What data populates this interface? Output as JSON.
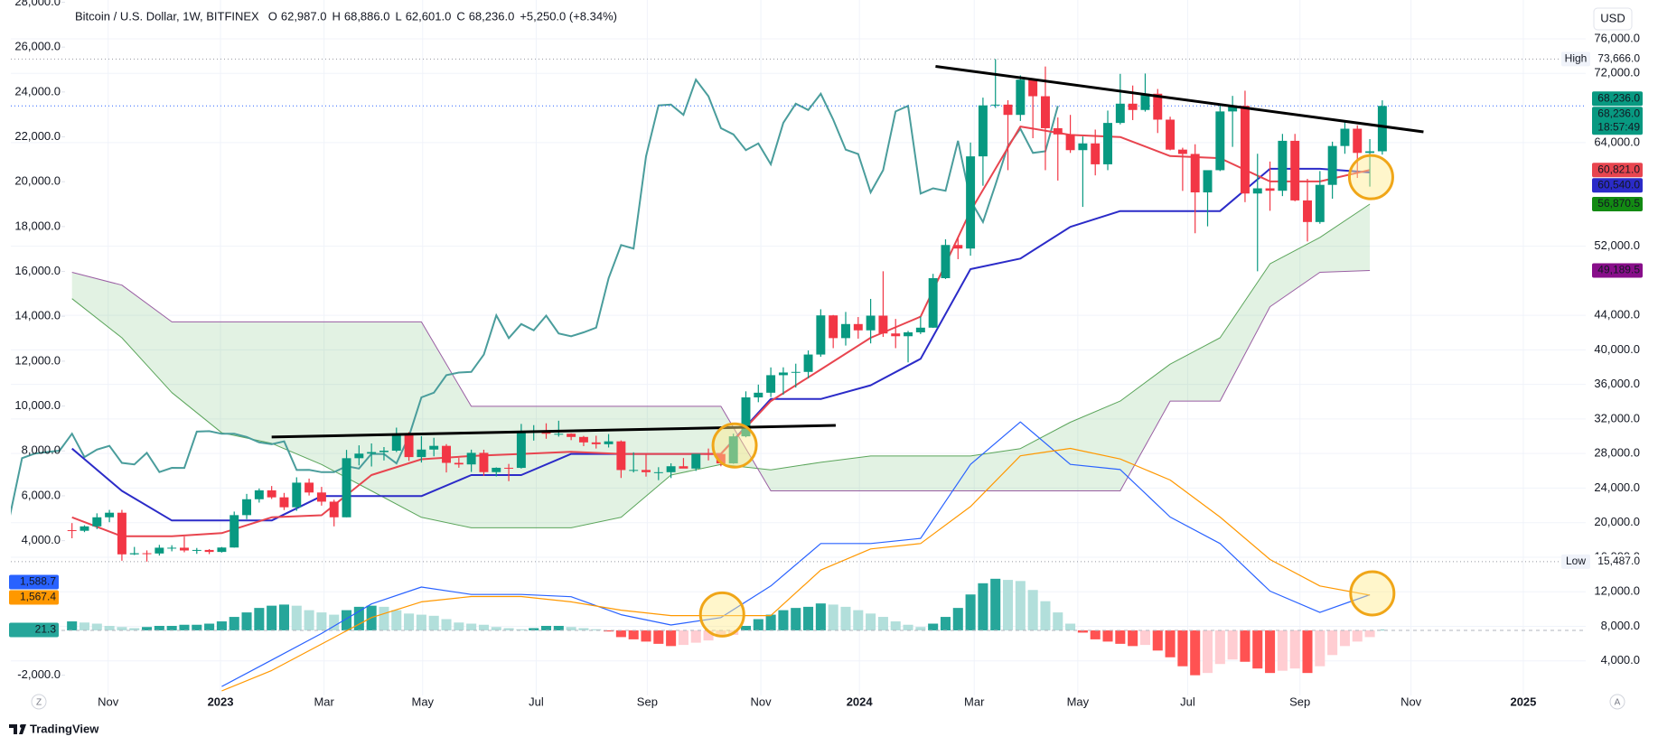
{
  "header": {
    "symbol": "Bitcoin / U.S. Dollar, 1W, BITFINEX",
    "ohlc": [
      {
        "key": "O",
        "value": "62,987.0"
      },
      {
        "key": "H",
        "value": "68,886.0"
      },
      {
        "key": "L",
        "value": "62,601.0"
      },
      {
        "key": "C",
        "value": "68,236.0"
      }
    ],
    "change": "+5,250.0 (+8.34%)",
    "currency": "USD"
  },
  "footer": {
    "brand": "TradingView",
    "left_button": "Z",
    "right_button": "A"
  },
  "chart_data": {
    "type": "candlestick",
    "up_color": "#089981",
    "down_color": "#f23645",
    "candles": [
      [
        19130,
        19950,
        18190,
        19060
      ],
      [
        19060,
        19700,
        18900,
        19570
      ],
      [
        19570,
        21080,
        19250,
        20620
      ],
      [
        20620,
        21480,
        20050,
        21150
      ],
      [
        21150,
        21480,
        15590,
        16330
      ],
      [
        16330,
        17190,
        16250,
        16460
      ],
      [
        16460,
        16790,
        15487,
        16430
      ],
      [
        16430,
        17430,
        16190,
        17100
      ],
      [
        17100,
        17390,
        16680,
        17100
      ],
      [
        17100,
        18390,
        16570,
        16780
      ],
      [
        16780,
        17070,
        16390,
        16840
      ],
      [
        16840,
        16940,
        16360,
        16610
      ],
      [
        16610,
        17180,
        16540,
        17120
      ],
      [
        17120,
        21280,
        17110,
        20870
      ],
      [
        20870,
        23330,
        20400,
        22710
      ],
      [
        22710,
        23960,
        22320,
        23740
      ],
      [
        23740,
        24240,
        22740,
        22930
      ],
      [
        22930,
        23440,
        21460,
        21780
      ],
      [
        21780,
        25250,
        21370,
        24630
      ],
      [
        24630,
        25100,
        23140,
        23490
      ],
      [
        23490,
        24140,
        21970,
        22430
      ],
      [
        22430,
        22650,
        19570,
        20620
      ],
      [
        20620,
        28420,
        20620,
        27460
      ],
      [
        27460,
        28950,
        26630,
        27990
      ],
      [
        27990,
        29170,
        26500,
        28170
      ],
      [
        28170,
        28750,
        27200,
        28330
      ],
      [
        28330,
        31000,
        28170,
        30300
      ],
      [
        30300,
        30490,
        27140,
        27590
      ],
      [
        27590,
        30020,
        26960,
        28460
      ],
      [
        28460,
        29820,
        27680,
        28890
      ],
      [
        28890,
        29090,
        25810,
        26920
      ],
      [
        26920,
        27490,
        26360,
        26740
      ],
      [
        26740,
        28450,
        25870,
        28080
      ],
      [
        28080,
        28440,
        25400,
        25850
      ],
      [
        25850,
        26400,
        25350,
        26350
      ],
      [
        26350,
        26800,
        24800,
        26340
      ],
      [
        26340,
        31430,
        26260,
        30540
      ],
      [
        30540,
        31290,
        29500,
        30590
      ],
      [
        30590,
        31500,
        29710,
        30290
      ],
      [
        30290,
        31800,
        29960,
        30290
      ],
      [
        30290,
        30340,
        29550,
        29920
      ],
      [
        29920,
        30040,
        28860,
        29290
      ],
      [
        29290,
        30060,
        28580,
        29080
      ],
      [
        29080,
        30250,
        28700,
        29410
      ],
      [
        29410,
        29520,
        25170,
        26090
      ],
      [
        26090,
        28140,
        25810,
        26100
      ],
      [
        26100,
        28000,
        25330,
        25840
      ],
      [
        25840,
        26420,
        24920,
        25840
      ],
      [
        25840,
        26870,
        25160,
        26530
      ],
      [
        26530,
        27480,
        26360,
        26260
      ],
      [
        26260,
        27250,
        25990,
        27970
      ],
      [
        27970,
        28580,
        27200,
        27950
      ],
      [
        27950,
        28000,
        26530,
        26860
      ],
      [
        26860,
        30300,
        26820,
        29990
      ],
      [
        29990,
        35200,
        29880,
        34500
      ],
      [
        34500,
        35980,
        33940,
        35040
      ],
      [
        35040,
        37970,
        34540,
        37070
      ],
      [
        37070,
        37980,
        34800,
        37380
      ],
      [
        37380,
        38400,
        35640,
        37450
      ],
      [
        37450,
        39930,
        36700,
        39460
      ],
      [
        39460,
        44700,
        39200,
        43990
      ],
      [
        43990,
        44040,
        40200,
        41360
      ],
      [
        41360,
        44390,
        40500,
        42990
      ],
      [
        42990,
        43800,
        41300,
        42260
      ],
      [
        42260,
        45900,
        40750,
        43960
      ],
      [
        43960,
        49100,
        41500,
        41900
      ],
      [
        41900,
        43580,
        40200,
        41580
      ],
      [
        41580,
        42200,
        38550,
        42030
      ],
      [
        42030,
        43850,
        41830,
        42570
      ],
      [
        42570,
        48800,
        42540,
        48300
      ],
      [
        48300,
        52800,
        48200,
        52140
      ],
      [
        52140,
        52990,
        50500,
        51730
      ],
      [
        51730,
        64000,
        50900,
        62400
      ],
      [
        62400,
        69200,
        59000,
        68300
      ],
      [
        68300,
        73666,
        68000,
        68390
      ],
      [
        68390,
        68900,
        60800,
        67200
      ],
      [
        67200,
        71770,
        66500,
        71280
      ],
      [
        71280,
        71330,
        64500,
        69360
      ],
      [
        69360,
        72800,
        60800,
        65660
      ],
      [
        65660,
        66900,
        59600,
        64940
      ],
      [
        64940,
        67200,
        62800,
        63120
      ],
      [
        63120,
        64700,
        56550,
        63900
      ],
      [
        63900,
        65500,
        60200,
        61480
      ],
      [
        61480,
        67700,
        60800,
        66270
      ],
      [
        66270,
        71950,
        66100,
        68500
      ],
      [
        68500,
        70600,
        66600,
        67770
      ],
      [
        67770,
        71990,
        67580,
        69650
      ],
      [
        69650,
        70200,
        65100,
        66650
      ],
      [
        66650,
        66990,
        63100,
        63180
      ],
      [
        63180,
        63400,
        58400,
        62680
      ],
      [
        62680,
        63800,
        53500,
        58230
      ],
      [
        58230,
        60400,
        54300,
        60800
      ],
      [
        60800,
        68400,
        60700,
        67600
      ],
      [
        67600,
        69400,
        63500,
        68250
      ],
      [
        68250,
        70000,
        57100,
        58100
      ],
      [
        58100,
        62700,
        49100,
        58700
      ],
      [
        58700,
        61800,
        56100,
        58420
      ],
      [
        58420,
        65000,
        57800,
        64200
      ],
      [
        64200,
        65000,
        57200,
        57300
      ],
      [
        57300,
        59800,
        52550,
        54800
      ],
      [
        54800,
        60700,
        54600,
        59100
      ],
      [
        59100,
        64100,
        57500,
        63600
      ],
      [
        63600,
        66500,
        62700,
        65600
      ],
      [
        65600,
        66000,
        59900,
        62800
      ],
      [
        62800,
        64400,
        58900,
        62987
      ],
      [
        62987,
        68886,
        62601,
        68236
      ]
    ],
    "last_labels": [
      "68,236.0",
      "68,236.0"
    ],
    "countdown": "18:57:49",
    "high": {
      "label": "High",
      "value": 73666,
      "value_label": "73,666.0"
    },
    "low": {
      "label": "Low",
      "value": 15487,
      "value_label": "15,487.0"
    },
    "xlim": [
      -4.9,
      121.3
    ],
    "xticks": [
      {
        "value": 2.9,
        "label": "Nov"
      },
      {
        "value": 11.9,
        "label": "2023"
      },
      {
        "value": 20.2,
        "label": "Mar"
      },
      {
        "value": 28.1,
        "label": "May"
      },
      {
        "value": 37.2,
        "label": "Jul"
      },
      {
        "value": 46.1,
        "label": "Sep"
      },
      {
        "value": 55.2,
        "label": "Nov"
      },
      {
        "value": 63.1,
        "label": "2024"
      },
      {
        "value": 72.3,
        "label": "Mar"
      },
      {
        "value": 80.6,
        "label": "May"
      },
      {
        "value": 89.4,
        "label": "Jul"
      },
      {
        "value": 98.4,
        "label": "Sep"
      },
      {
        "value": 107.3,
        "label": "Nov"
      },
      {
        "value": 116.3,
        "label": "2025"
      }
    ],
    "ylim": [
      0,
      80500
    ],
    "yticks": [
      {
        "value": 76000,
        "label": "76,000.0"
      },
      {
        "value": 72000,
        "label": "72,000.0"
      },
      {
        "value": 64000,
        "label": "64,000.0"
      },
      {
        "value": 52000,
        "label": "52,000.0"
      },
      {
        "value": 44000,
        "label": "44,000.0"
      },
      {
        "value": 40000,
        "label": "40,000.0"
      },
      {
        "value": 36000,
        "label": "36,000.0"
      },
      {
        "value": 32000,
        "label": "32,000.0"
      },
      {
        "value": 28000,
        "label": "28,000.0"
      },
      {
        "value": 24000,
        "label": "24,000.0"
      },
      {
        "value": 20000,
        "label": "20,000.0"
      },
      {
        "value": 16000,
        "label": "16,000.0"
      },
      {
        "value": 12000,
        "label": "12,000.0"
      },
      {
        "value": 8000,
        "label": "8,000.0"
      },
      {
        "value": 4000,
        "label": "4,000.0"
      }
    ],
    "y2lim": [
      -2900,
      28100
    ],
    "y2ticks": [
      {
        "value": 28000,
        "label": "28,000.0"
      },
      {
        "value": 26000,
        "label": "26,000.0"
      },
      {
        "value": 24000,
        "label": "24,000.0"
      },
      {
        "value": 22000,
        "label": "22,000.0"
      },
      {
        "value": 20000,
        "label": "20,000.0"
      },
      {
        "value": 18000,
        "label": "18,000.0"
      },
      {
        "value": 16000,
        "label": "16,000.0"
      },
      {
        "value": 14000,
        "label": "14,000.0"
      },
      {
        "value": 12000,
        "label": "12,000.0"
      },
      {
        "value": 10000,
        "label": "10,000.0"
      },
      {
        "value": 8000,
        "label": "8,000.0"
      },
      {
        "value": 6000,
        "label": "6,000.0"
      },
      {
        "value": 4000,
        "label": "4,000.0"
      },
      {
        "value": -2000,
        "label": "-2,000.0"
      }
    ],
    "grid": true,
    "ichimoku": {
      "x": [
        0,
        4,
        8,
        12,
        16,
        20,
        24,
        28,
        32,
        36,
        40,
        44,
        48,
        52,
        56,
        60,
        64,
        68,
        72,
        76,
        80,
        84,
        88,
        92,
        96,
        100,
        104
      ],
      "conversion": {
        "color": "#e8454f",
        "values": [
          20620,
          18420,
          18420,
          18790,
          20620,
          20860,
          25510,
          27340,
          27710,
          27960,
          28200,
          27960,
          27960,
          27960,
          34070,
          37730,
          41400,
          43850,
          56070,
          65850,
          64880,
          64640,
          62430,
          62190,
          59500,
          59500,
          60821
        ],
        "value_label": "60,821.0"
      },
      "base": {
        "color": "#2b2bc8",
        "values": [
          28570,
          23680,
          20250,
          20250,
          20250,
          23070,
          23070,
          23070,
          25510,
          25510,
          27960,
          27960,
          27960,
          27960,
          34310,
          34310,
          35900,
          38960,
          49350,
          50570,
          54240,
          56070,
          56070,
          56070,
          60960,
          60960,
          60540
        ],
        "value_label": "60,540.0"
      },
      "span_a": {
        "color": "#5ba55b",
        "values": [
          45930,
          41400,
          35050,
          30400,
          29180,
          26730,
          23680,
          20620,
          19400,
          19400,
          19400,
          20620,
          25510,
          26730,
          26120,
          26980,
          27710,
          27710,
          27710,
          28570,
          31620,
          34070,
          38350,
          41400,
          49960,
          53020,
          56870.5
        ],
        "value_label": "56,870.5",
        "badge_color": "#138a13"
      },
      "span_b": {
        "color": "#9a5ea3",
        "values": [
          48980,
          47500,
          43240,
          43240,
          43240,
          43240,
          43240,
          43240,
          33460,
          33460,
          33460,
          33460,
          33460,
          33460,
          23680,
          23680,
          23680,
          23680,
          23680,
          23680,
          23680,
          23680,
          34070,
          34070,
          45000,
          48980,
          49189.5
        ],
        "value_label": "49,189.5",
        "badge_color": "#880e8a"
      },
      "cloud_color": "rgba(76,175,80,0.16)",
      "lagging": {
        "color": "#4a9d9c",
        "displacement": 26
      }
    },
    "macd": {
      "axis": "y2",
      "x": [
        0,
        4,
        8,
        12,
        16,
        20,
        24,
        28,
        32,
        36,
        40,
        44,
        48,
        52,
        56,
        60,
        64,
        68,
        72,
        76,
        80,
        84,
        88,
        92,
        96,
        100,
        104
      ],
      "macd": {
        "color": "#2962ff",
        "values": [
          null,
          null,
          null,
          -2500,
          -1320,
          -140,
          1180,
          1930,
          1600,
          1600,
          1500,
          700,
          240,
          570,
          1980,
          3870,
          3870,
          4100,
          7400,
          9290,
          7400,
          7170,
          5050,
          3870,
          1750,
          800,
          1588.7
        ],
        "value_label": "1,588.7"
      },
      "signal": {
        "color": "#ff9800",
        "values": [
          null,
          null,
          null,
          -2700,
          -1790,
          -610,
          570,
          1270,
          1510,
          1510,
          1270,
          900,
          660,
          660,
          660,
          2690,
          3630,
          3870,
          5520,
          7780,
          8110,
          7640,
          6700,
          5050,
          3160,
          1980,
          1567.4
        ],
        "value_label": "1,567.4"
      },
      "histogram": {
        "colors": [
          "#26a69a",
          "#b2dfdb",
          "#ff5252",
          "#ffcdd2"
        ],
        "values": [
          400,
          350,
          300,
          200,
          150,
          100,
          150,
          200,
          200,
          250,
          250,
          300,
          400,
          600,
          800,
          1000,
          1100,
          1150,
          1100,
          900,
          800,
          700,
          900,
          1050,
          1100,
          1050,
          900,
          750,
          700,
          650,
          500,
          350,
          300,
          250,
          150,
          100,
          50,
          100,
          200,
          200,
          150,
          100,
          50,
          -50,
          -300,
          -400,
          -500,
          -600,
          -700,
          -650,
          -550,
          -450,
          -300,
          -200,
          200,
          500,
          700,
          900,
          1000,
          1050,
          1200,
          1150,
          1050,
          900,
          750,
          600,
          400,
          250,
          150,
          300,
          600,
          1000,
          1600,
          2100,
          2300,
          2250,
          2200,
          1800,
          1300,
          800,
          300,
          -100,
          -400,
          -500,
          -600,
          -700,
          -650,
          -900,
          -1200,
          -1600,
          -2000,
          -1900,
          -1500,
          -1300,
          -1400,
          -1700,
          -1900,
          -1800,
          -1700,
          -1900,
          -1600,
          -1100,
          -700,
          -500,
          -300,
          21.3
        ],
        "value_label": "21.3"
      }
    },
    "trendline_color": "#000000",
    "trendlines": [
      {
        "x": [
          69.2,
          108.3
        ],
        "y": [
          72820,
          65240
        ]
      },
      {
        "x": [
          16,
          61.2
        ],
        "y": [
          29910,
          31260
        ]
      }
    ],
    "highlights": [
      {
        "x": 53.1,
        "y": 28930
      },
      {
        "x": 104.1,
        "y": 59990
      },
      {
        "x": 52.1,
        "y": 710,
        "axis": "y2"
      },
      {
        "x": 104.2,
        "y": 1650,
        "axis": "y2"
      }
    ]
  }
}
